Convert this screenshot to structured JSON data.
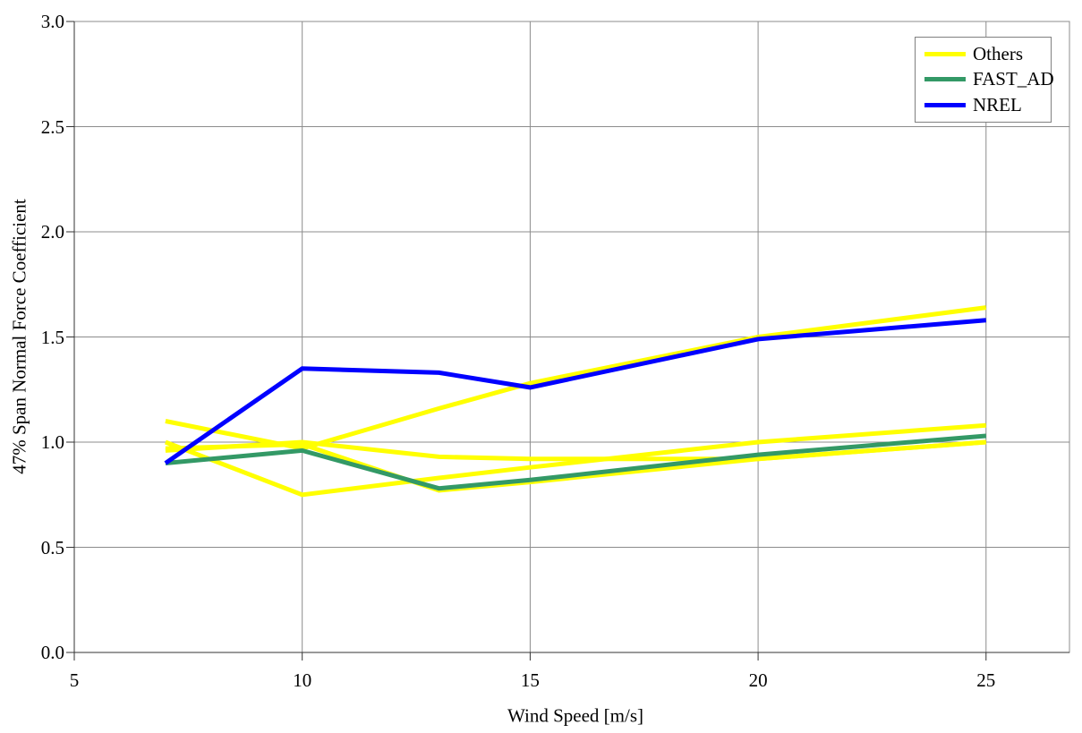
{
  "figure": {
    "background": "#ffffff"
  },
  "colors": {
    "others": "#ffff00",
    "fast_ad": "#339966",
    "nrel": "#0000ff",
    "gridline": "#8c8c8c",
    "axis": "#333333",
    "plot_border": "#8c8c8c",
    "text": "#000000"
  },
  "chart_data": {
    "type": "line",
    "title": "",
    "xlabel": "Wind Speed [m/s]",
    "ylabel": "47% Span Normal Force Coefficient",
    "x": [
      7,
      10,
      13,
      15,
      20,
      25
    ],
    "series": [
      {
        "name": "Others-1",
        "legend_group": "Others",
        "color": "#ffff00",
        "values": [
          1.1,
          0.97,
          1.16,
          1.28,
          1.5,
          1.64
        ]
      },
      {
        "name": "Others-2",
        "legend_group": "Others",
        "color": "#ffff00",
        "values": [
          1.0,
          0.75,
          0.83,
          0.88,
          1.0,
          1.08
        ]
      },
      {
        "name": "Others-3",
        "legend_group": "Others",
        "color": "#ffff00",
        "values": [
          0.97,
          0.99,
          0.77,
          0.81,
          0.92,
          1.0
        ]
      },
      {
        "name": "Others-4",
        "legend_group": "Others",
        "color": "#ffff00",
        "values": [
          0.96,
          1.0,
          0.93,
          0.92,
          0.92,
          1.0
        ]
      },
      {
        "name": "FAST_AD",
        "legend_group": "FAST_AD",
        "color": "#339966",
        "values": [
          0.9,
          0.96,
          0.78,
          0.82,
          0.94,
          1.03
        ]
      },
      {
        "name": "NREL",
        "legend_group": "NREL",
        "color": "#0000ff",
        "values": [
          0.9,
          1.35,
          1.33,
          1.26,
          1.49,
          1.58
        ]
      }
    ],
    "legend": {
      "position": "top-right",
      "entries": [
        {
          "label": "Others",
          "color": "#ffff00"
        },
        {
          "label": "FAST_AD",
          "color": "#339966"
        },
        {
          "label": "NREL",
          "color": "#0000ff"
        }
      ]
    },
    "xlim": [
      5,
      26.83
    ],
    "ylim": [
      0.0,
      3.0
    ],
    "x_ticks": [
      5,
      10,
      15,
      20,
      25
    ],
    "x_tick_labels": [
      "5",
      "10",
      "15",
      "20",
      "25"
    ],
    "y_ticks": [
      0.0,
      0.5,
      1.0,
      1.5,
      2.0,
      2.5,
      3.0
    ],
    "y_tick_labels": [
      "0.0",
      "0.5",
      "1.0",
      "1.5",
      "2.0",
      "2.5",
      "3.0"
    ],
    "grid": true
  }
}
